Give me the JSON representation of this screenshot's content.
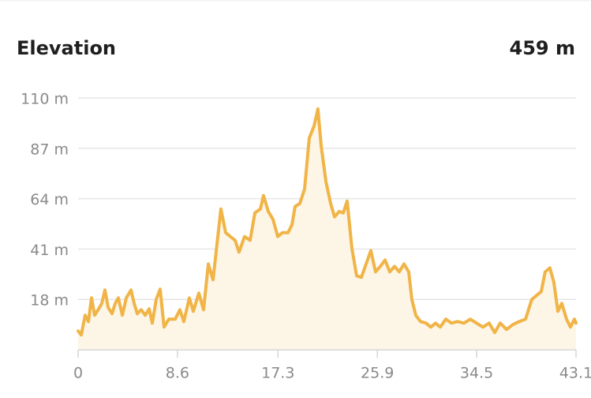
{
  "chart_data": {
    "type": "area",
    "title": "Elevation",
    "summary": "459 m",
    "color": "#f0b447",
    "fill": "#fdf5e6",
    "grid": true,
    "xlim": [
      0,
      43.1
    ],
    "xticks": [
      0,
      8.6,
      17.3,
      25.9,
      34.5,
      43.1
    ],
    "ylim": [
      -5,
      110
    ],
    "yticks": [
      {
        "value": 18,
        "label": "18 m"
      },
      {
        "value": 41,
        "label": "41 m"
      },
      {
        "value": 64,
        "label": "64 m"
      },
      {
        "value": 87,
        "label": "87 m"
      },
      {
        "value": 110,
        "label": "110 m"
      }
    ],
    "x": [
      0,
      0.27,
      0.61,
      0.89,
      1.16,
      1.43,
      1.78,
      2.05,
      2.32,
      2.6,
      2.94,
      3.21,
      3.48,
      3.83,
      4.17,
      4.58,
      4.85,
      5.12,
      5.46,
      5.81,
      6.15,
      6.42,
      6.76,
      7.1,
      7.44,
      7.85,
      8.4,
      8.81,
      9.15,
      9.63,
      9.97,
      10.45,
      10.86,
      11.27,
      11.68,
      12.02,
      12.36,
      12.77,
      13.18,
      13.59,
      13.93,
      14.41,
      14.89,
      15.3,
      15.78,
      16.05,
      16.46,
      16.87,
      17.28,
      17.69,
      18.17,
      18.51,
      18.78,
      19.19,
      19.6,
      20.01,
      20.42,
      20.76,
      21.04,
      21.45,
      21.86,
      22.2,
      22.61,
      22.95,
      23.29,
      23.7,
      24.11,
      24.52,
      24.93,
      25.34,
      25.75,
      26.16,
      26.57,
      26.98,
      27.39,
      27.8,
      28.21,
      28.62,
      28.89,
      29.23,
      29.64,
      30.12,
      30.53,
      30.94,
      31.35,
      31.83,
      32.31,
      32.85,
      33.4,
      33.95,
      34.49,
      35.04,
      35.58,
      36.06,
      36.54,
      37.09,
      37.63,
      38.18,
      38.73,
      39.27,
      39.68,
      40.09,
      40.43,
      40.84,
      41.18,
      41.53,
      41.87,
      42.28,
      42.62,
      42.96,
      43.1
    ],
    "values": [
      3.6,
      1.8,
      10.8,
      7.9,
      18.7,
      10.8,
      13.7,
      16.2,
      22.3,
      14.4,
      11.5,
      16.2,
      18.7,
      10.8,
      18.7,
      22.3,
      16.2,
      11.5,
      13.3,
      10.8,
      13.7,
      7.2,
      18,
      22.7,
      5.4,
      9,
      9,
      13.3,
      7.9,
      18.7,
      12.6,
      20.9,
      13.3,
      34.2,
      27,
      43.2,
      59.3,
      48.5,
      46.7,
      45,
      39.6,
      46.7,
      45,
      57.5,
      59.3,
      65.4,
      58.2,
      54.6,
      46.7,
      48.5,
      48.5,
      52.1,
      60.4,
      61.8,
      68.3,
      91.7,
      97.1,
      105,
      88.1,
      71.9,
      61.8,
      55.7,
      58.2,
      57.5,
      62.9,
      41.4,
      28.8,
      28.1,
      34.2,
      40.3,
      30.6,
      33.1,
      36,
      30.6,
      33.1,
      30.6,
      34.2,
      30.6,
      18,
      10.8,
      7.9,
      7.2,
      5.4,
      7.2,
      5.4,
      9,
      7.2,
      7.9,
      7.2,
      9,
      7.2,
      5.4,
      7.2,
      2.9,
      7.2,
      4.3,
      6.5,
      7.9,
      9,
      18,
      19.8,
      21.6,
      30.6,
      32.4,
      25.9,
      12.6,
      16.2,
      9,
      5.4,
      9,
      7.2
    ]
  }
}
